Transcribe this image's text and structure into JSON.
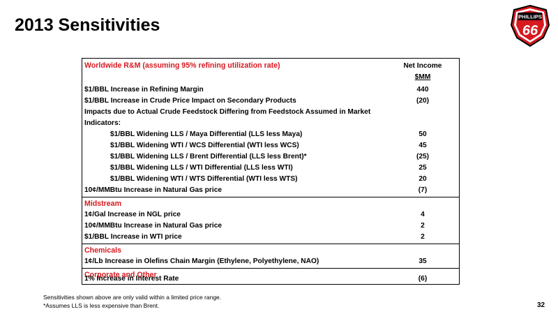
{
  "slide": {
    "title": "2013 Sensitivities",
    "page_number": "32",
    "logo_text_top": "PHILLIPS",
    "logo_text_num": "66",
    "colors": {
      "accent_red": "#d71920",
      "text": "#000000"
    }
  },
  "table": {
    "col_header_line1": "Net Income",
    "col_header_line2": "$MM",
    "sections": {
      "rm": {
        "title": "Worldwide R&M (assuming 95% refining utilization rate)",
        "rows": [
          {
            "label": "$1/BBL Increase in Refining Margin",
            "value": "440"
          },
          {
            "label": "$1/BBL Increase in Crude Price Impact on Secondary Products",
            "value": "(20)"
          },
          {
            "label": "Impacts due to Actual Crude Feedstock Differing from Feedstock Assumed in Market",
            "value": ""
          },
          {
            "label": "Indicators:",
            "value": ""
          },
          {
            "label": "$1/BBL Widening LLS / Maya Differential (LLS less Maya)",
            "value": "50"
          },
          {
            "label": "$1/BBL Widening WTI / WCS Differential (WTI less WCS)",
            "value": "45"
          },
          {
            "label": "$1/BBL Widening LLS / Brent Differential (LLS less Brent)*",
            "value": "(25)"
          },
          {
            "label": "$1/BBL Widening LLS / WTI Differential (LLS less WTI)",
            "value": "25"
          },
          {
            "label": "$1/BBL Widening WTI / WTS Differential (WTI less WTS)",
            "value": "20"
          },
          {
            "label": "10¢/MMBtu Increase in Natural Gas price",
            "value": "(7)"
          }
        ]
      },
      "midstream": {
        "title": "Midstream",
        "rows": [
          {
            "label": "1¢/Gal Increase in NGL price",
            "value": "4"
          },
          {
            "label": "10¢/MMBtu Increase in Natural Gas price",
            "value": "2"
          },
          {
            "label": "$1/BBL Increase in WTI price",
            "value": "2"
          }
        ]
      },
      "chemicals": {
        "title": "Chemicals",
        "rows": [
          {
            "label": "1¢/Lb Increase in Olefins Chain Margin (Ethylene, Polyethylene, NAO)",
            "value": "35"
          }
        ]
      },
      "corporate": {
        "title": "Corporate and Other",
        "rows": [
          {
            "label": "1% Increase in Interest Rate",
            "value": "(6)"
          }
        ]
      }
    }
  },
  "footnotes": {
    "line1": "Sensitivities shown above are only valid within a limited price range.",
    "line2": "*Assumes LLS is less expensive than Brent."
  }
}
